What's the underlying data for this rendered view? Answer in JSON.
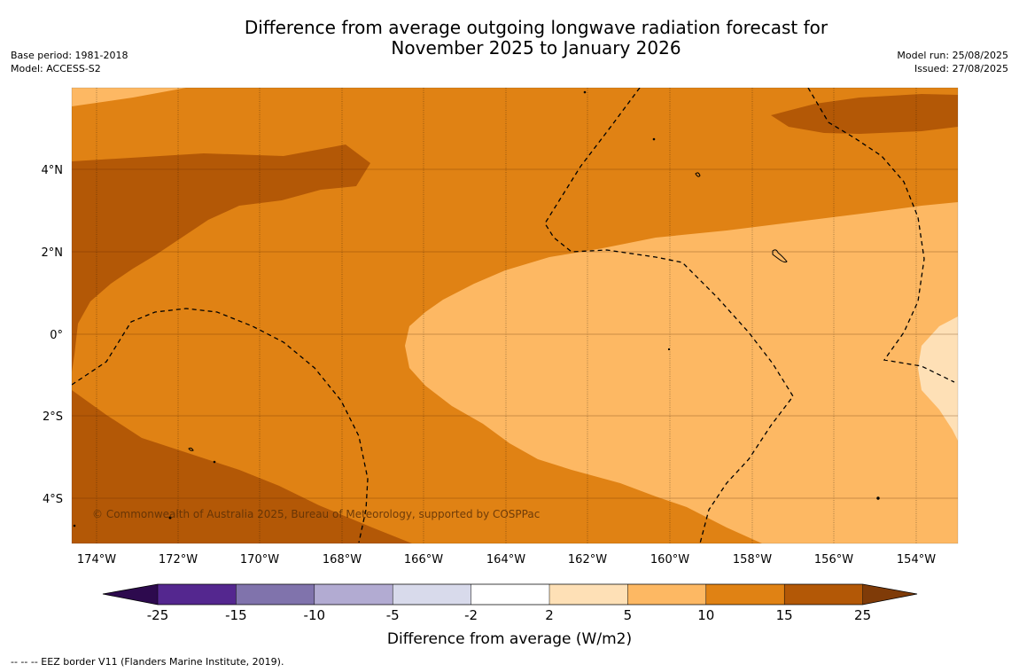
{
  "title": {
    "line1": "Difference from average outgoing longwave radiation forecast for",
    "line2": "November 2025 to January 2026"
  },
  "meta_left": {
    "base_period": "Base period: 1981-2018",
    "model": "Model: ACCESS-S2"
  },
  "meta_right": {
    "model_run": "Model run: 25/08/2025",
    "issued": "Issued: 27/08/2025"
  },
  "map": {
    "lon_labels": [
      "174°W",
      "172°W",
      "170°W",
      "168°W",
      "166°W",
      "164°W",
      "162°W",
      "160°W",
      "158°W",
      "156°W",
      "154°W"
    ],
    "lat_labels": [
      "4°N",
      "2°N",
      "0°",
      "2°S",
      "4°S"
    ],
    "copyright": "© Commonwealth of Australia 2025, Bureau of Meteorology, supported by COSPPac"
  },
  "colorbar": {
    "ticks": [
      "-25",
      "-15",
      "-10",
      "-5",
      "-2",
      "2",
      "5",
      "10",
      "15",
      "25"
    ],
    "label": "Difference from average (W/m2)",
    "colors": {
      "lt_neg25": "#2d0a4e",
      "neg25_neg15": "#54278f",
      "neg15_neg10": "#8073ac",
      "neg10_neg5": "#b2abd2",
      "neg5_neg2": "#d8daeb",
      "neg2_2": "#ffffff",
      "2_5": "#fee0b6",
      "5_10": "#fdb863",
      "10_15": "#e08214",
      "15_25": "#b35806",
      "gt_25": "#7f3b08"
    }
  },
  "footer": {
    "legend": "--  --  -- EEZ border V11 (Flanders Marine Institute, 2019)."
  }
}
